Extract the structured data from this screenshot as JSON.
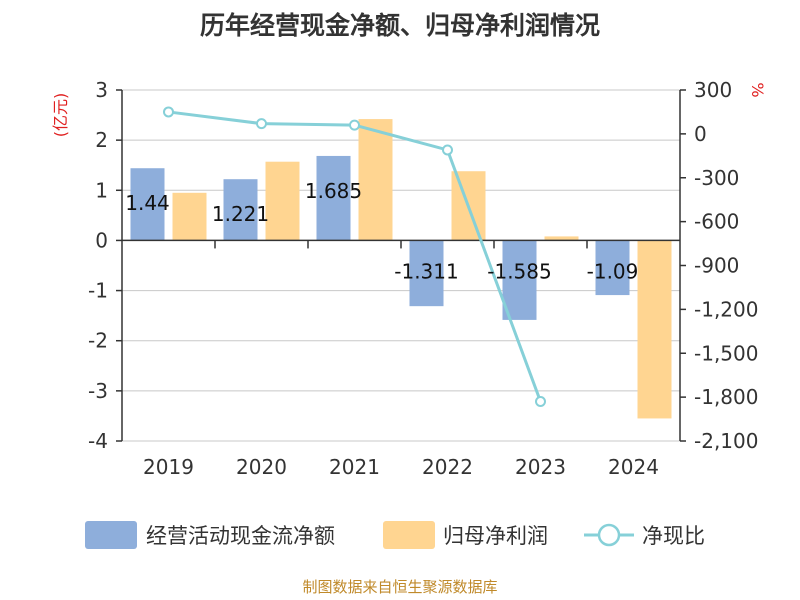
{
  "chart_data": {
    "type": "bar",
    "title": "历年经营现金净额、归母净利润情况",
    "categories": [
      "2019",
      "2020",
      "2021",
      "2022",
      "2023",
      "2024"
    ],
    "series": [
      {
        "name": "经营活动现金流净额",
        "type": "bar",
        "axis": "left",
        "color": "#8eaedb",
        "values": [
          1.44,
          1.221,
          1.685,
          -1.311,
          -1.585,
          -1.09
        ],
        "labels": [
          "1.44",
          "1.221",
          "1.685",
          "-1.311",
          "-1.585",
          "-1.09"
        ]
      },
      {
        "name": "归母净利润",
        "type": "bar",
        "axis": "left",
        "color": "#ffd591",
        "values": [
          0.95,
          1.57,
          2.42,
          1.38,
          0.08,
          -3.55
        ]
      },
      {
        "name": "净现比",
        "type": "line",
        "axis": "right",
        "color": "#86d0d8",
        "values": [
          150,
          70,
          60,
          -110,
          -1830,
          null
        ]
      }
    ],
    "y_left": {
      "unit": "(亿元)",
      "range": [
        -4,
        3
      ],
      "ticks": [
        "3",
        "2",
        "1",
        "0",
        "-1",
        "-2",
        "-3",
        "-4"
      ]
    },
    "y_right": {
      "unit": "%",
      "range": [
        -2100,
        300
      ],
      "ticks": [
        "300",
        "0",
        "-300",
        "-600",
        "-900",
        "-1,200",
        "-1,500",
        "-1,800",
        "-2,100"
      ]
    },
    "grid": true,
    "legend_position": "bottom"
  },
  "source": "制图数据来自恒生聚源数据库"
}
